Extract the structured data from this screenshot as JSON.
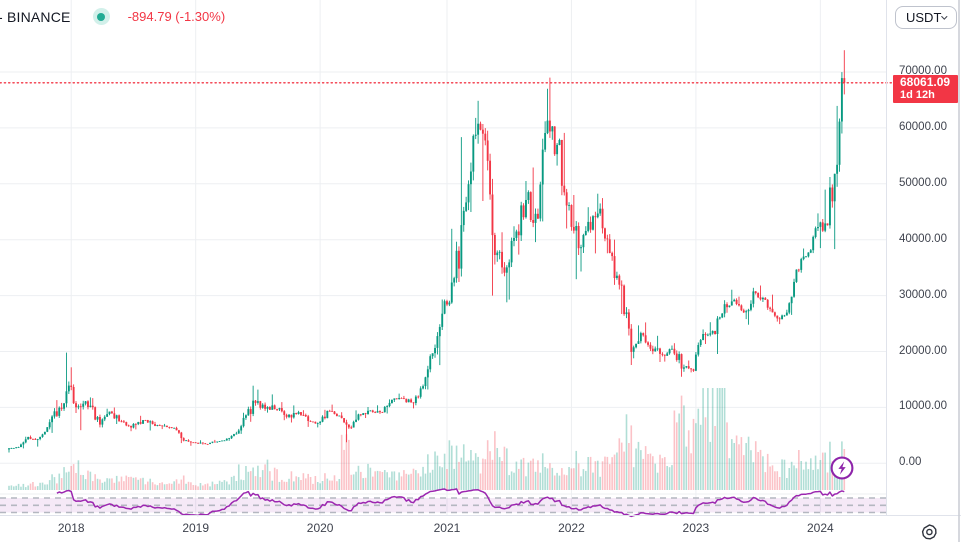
{
  "header": {
    "symbol": "- BINANCE",
    "change": "-894.79 (-1.30%)",
    "change_absolute": -894.79,
    "change_percent": -1.3,
    "currency": "USDT"
  },
  "last_price": {
    "text": "68061.09",
    "value": 68061.09,
    "countdown": "1d 12h"
  },
  "price_scale": {
    "labels": [
      "70000.00",
      "60000.00",
      "50000.00",
      "40000.00",
      "30000.00",
      "20000.00",
      "10000.00",
      "0.00"
    ],
    "values": [
      70000,
      60000,
      50000,
      40000,
      30000,
      20000,
      10000,
      0
    ]
  },
  "time_scale": {
    "labels": [
      "2018",
      "2019",
      "2020",
      "2021",
      "2022",
      "2023",
      "2024"
    ]
  },
  "chart_data": {
    "type": "candlestick",
    "exchange": "BINANCE",
    "quote_currency": "USDT",
    "title": "",
    "xlabel": "",
    "ylabel": "",
    "ylim": [
      0,
      74000
    ],
    "x_ticks_years": [
      2018,
      2019,
      2020,
      2021,
      2022,
      2023,
      2024
    ],
    "grid": true,
    "last_price_line": {
      "value": 68061.09,
      "style": "dotted",
      "color": "#f23645"
    },
    "volume_units": "relative 0-1 of tallest bar",
    "monthly_ohlcv_note": "columns: [month, open, high, low, close, relative_volume]",
    "monthly": [
      [
        "2017-07",
        2480,
        2920,
        1940,
        2860,
        0.04
      ],
      [
        "2017-08",
        2860,
        4765,
        2660,
        4700,
        0.05
      ],
      [
        "2017-09",
        4700,
        4975,
        2980,
        4340,
        0.06
      ],
      [
        "2017-10",
        4340,
        6480,
        4110,
        6450,
        0.07
      ],
      [
        "2017-11",
        6450,
        11300,
        5430,
        9950,
        0.12
      ],
      [
        "2017-12",
        9950,
        19800,
        9380,
        13900,
        0.2
      ],
      [
        "2018-01",
        13900,
        17180,
        9000,
        10200,
        0.22
      ],
      [
        "2018-02",
        10200,
        11790,
        5920,
        10300,
        0.17
      ],
      [
        "2018-03",
        10300,
        11660,
        6430,
        6930,
        0.14
      ],
      [
        "2018-04",
        6930,
        9760,
        6420,
        9240,
        0.12
      ],
      [
        "2018-05",
        9240,
        9990,
        7030,
        7490,
        0.1
      ],
      [
        "2018-06",
        7490,
        7750,
        5750,
        6400,
        0.1
      ],
      [
        "2018-07",
        6400,
        8500,
        6070,
        7730,
        0.09
      ],
      [
        "2018-08",
        7730,
        7760,
        5860,
        7010,
        0.09
      ],
      [
        "2018-09",
        7010,
        7410,
        6120,
        6630,
        0.07
      ],
      [
        "2018-10",
        6630,
        7040,
        6190,
        6340,
        0.06
      ],
      [
        "2018-11",
        6340,
        6550,
        3620,
        4030,
        0.11
      ],
      [
        "2018-12",
        4030,
        4300,
        3130,
        3740,
        0.09
      ],
      [
        "2019-01",
        3740,
        4110,
        3350,
        3460,
        0.06
      ],
      [
        "2019-02",
        3460,
        4190,
        3330,
        3860,
        0.06
      ],
      [
        "2019-03",
        3860,
        4140,
        3660,
        4100,
        0.07
      ],
      [
        "2019-04",
        4100,
        5630,
        4020,
        5320,
        0.1
      ],
      [
        "2019-05",
        5320,
        9060,
        5260,
        8580,
        0.18
      ],
      [
        "2019-06",
        8580,
        13880,
        7430,
        10820,
        0.25
      ],
      [
        "2019-07",
        10820,
        13180,
        9070,
        10080,
        0.22
      ],
      [
        "2019-08",
        10080,
        12320,
        9350,
        9630,
        0.16
      ],
      [
        "2019-09",
        9630,
        10940,
        7710,
        8310,
        0.13
      ],
      [
        "2019-10",
        8310,
        10350,
        7290,
        9160,
        0.14
      ],
      [
        "2019-11",
        9160,
        9500,
        6520,
        7570,
        0.12
      ],
      [
        "2019-12",
        7570,
        7690,
        6430,
        7190,
        0.1
      ],
      [
        "2020-01",
        7190,
        9570,
        6850,
        9350,
        0.12
      ],
      [
        "2020-02",
        9350,
        10500,
        8400,
        8530,
        0.11
      ],
      [
        "2020-03",
        8530,
        9150,
        3780,
        6420,
        0.4
      ],
      [
        "2020-04",
        6420,
        9460,
        6140,
        8630,
        0.22
      ],
      [
        "2020-05",
        8630,
        10070,
        8100,
        9450,
        0.2
      ],
      [
        "2020-06",
        9450,
        10380,
        8830,
        9140,
        0.15
      ],
      [
        "2020-07",
        9140,
        11440,
        8900,
        11350,
        0.15
      ],
      [
        "2020-08",
        11350,
        12470,
        10960,
        11650,
        0.17
      ],
      [
        "2020-09",
        11650,
        12050,
        9820,
        10780,
        0.15
      ],
      [
        "2020-10",
        10780,
        14100,
        10370,
        13800,
        0.17
      ],
      [
        "2020-11",
        13800,
        19500,
        13200,
        19700,
        0.25
      ],
      [
        "2020-12",
        19700,
        29300,
        17570,
        28990,
        0.28
      ],
      [
        "2021-01",
        28990,
        41950,
        28130,
        33110,
        0.35
      ],
      [
        "2021-02",
        33110,
        58350,
        32300,
        45160,
        0.32
      ],
      [
        "2021-03",
        45160,
        61780,
        44950,
        58780,
        0.3
      ],
      [
        "2021-04",
        58780,
        64850,
        46930,
        57750,
        0.3
      ],
      [
        "2021-05",
        57750,
        59500,
        30000,
        37250,
        0.45
      ],
      [
        "2021-06",
        37250,
        41330,
        28800,
        35040,
        0.32
      ],
      [
        "2021-07",
        35040,
        42400,
        29280,
        41460,
        0.26
      ],
      [
        "2021-08",
        41460,
        50500,
        37330,
        47110,
        0.24
      ],
      [
        "2021-09",
        47110,
        52920,
        39570,
        43790,
        0.23
      ],
      [
        "2021-10",
        43790,
        66990,
        43280,
        61310,
        0.26
      ],
      [
        "2021-11",
        61310,
        69000,
        53250,
        56950,
        0.25
      ],
      [
        "2021-12",
        56950,
        59100,
        42000,
        46210,
        0.24
      ],
      [
        "2022-01",
        46210,
        47990,
        32930,
        38480,
        0.27
      ],
      [
        "2022-02",
        38480,
        45820,
        34320,
        43190,
        0.23
      ],
      [
        "2022-03",
        43190,
        48230,
        37550,
        45540,
        0.24
      ],
      [
        "2022-04",
        45540,
        47450,
        37570,
        37630,
        0.23
      ],
      [
        "2022-05",
        37630,
        40020,
        26700,
        31790,
        0.45
      ],
      [
        "2022-06",
        31790,
        31980,
        17590,
        19940,
        0.52
      ],
      [
        "2022-07",
        19940,
        24670,
        18780,
        23290,
        0.36
      ],
      [
        "2022-08",
        23290,
        25210,
        19520,
        20050,
        0.32
      ],
      [
        "2022-09",
        20050,
        22800,
        18120,
        19420,
        0.3
      ],
      [
        "2022-10",
        19420,
        21080,
        18190,
        20490,
        0.3
      ],
      [
        "2022-11",
        20490,
        21480,
        15480,
        17160,
        0.8
      ],
      [
        "2022-12",
        17160,
        18390,
        16260,
        16540,
        0.5
      ],
      [
        "2023-01",
        16540,
        23960,
        16490,
        23130,
        0.85
      ],
      [
        "2023-02",
        23130,
        25250,
        21350,
        23140,
        0.75
      ],
      [
        "2023-03",
        23140,
        29180,
        19550,
        28470,
        0.98
      ],
      [
        "2023-04",
        28470,
        31050,
        26940,
        29230,
        0.55
      ],
      [
        "2023-05",
        29230,
        29820,
        25800,
        27210,
        0.45
      ],
      [
        "2023-06",
        27210,
        31400,
        24800,
        30470,
        0.42
      ],
      [
        "2023-07",
        30470,
        31800,
        28860,
        29230,
        0.3
      ],
      [
        "2023-08",
        29230,
        30180,
        25350,
        25930,
        0.28
      ],
      [
        "2023-09",
        25930,
        27480,
        24900,
        26960,
        0.22
      ],
      [
        "2023-10",
        26960,
        34700,
        26540,
        34650,
        0.28
      ],
      [
        "2023-11",
        34650,
        38420,
        34100,
        37710,
        0.3
      ],
      [
        "2023-12",
        37710,
        44700,
        37610,
        42280,
        0.3
      ],
      [
        "2024-01",
        42280,
        48970,
        38500,
        42580,
        0.32
      ],
      [
        "2024-02",
        42580,
        63930,
        38320,
        61130,
        0.38
      ],
      [
        "2024-03",
        61130,
        73900,
        59000,
        68061.09,
        0.42
      ]
    ],
    "weekly_tail": [
      [
        61130,
        69990,
        59000,
        68900,
        0.45
      ],
      [
        68900,
        73900,
        66000,
        68061.09,
        0.38
      ]
    ],
    "oscillator": {
      "kind": "rsi-style line, separate bottom pane",
      "band": [
        30,
        70
      ],
      "color": "#9c27b0"
    },
    "colors": {
      "up": "#089981",
      "down": "#f23645",
      "vol_up": "rgba(8,153,129,0.32)",
      "vol_down": "rgba(242,54,69,0.30)",
      "grid": "#edeff2",
      "axis_border": "#e0e3eb",
      "oscillator": "#9c27b0",
      "osc_band": "rgba(156,39,176,0.10)",
      "osc_dash": "#b4b7c0",
      "label_bg": "#f23645",
      "status_dot": "#22ab94"
    }
  }
}
